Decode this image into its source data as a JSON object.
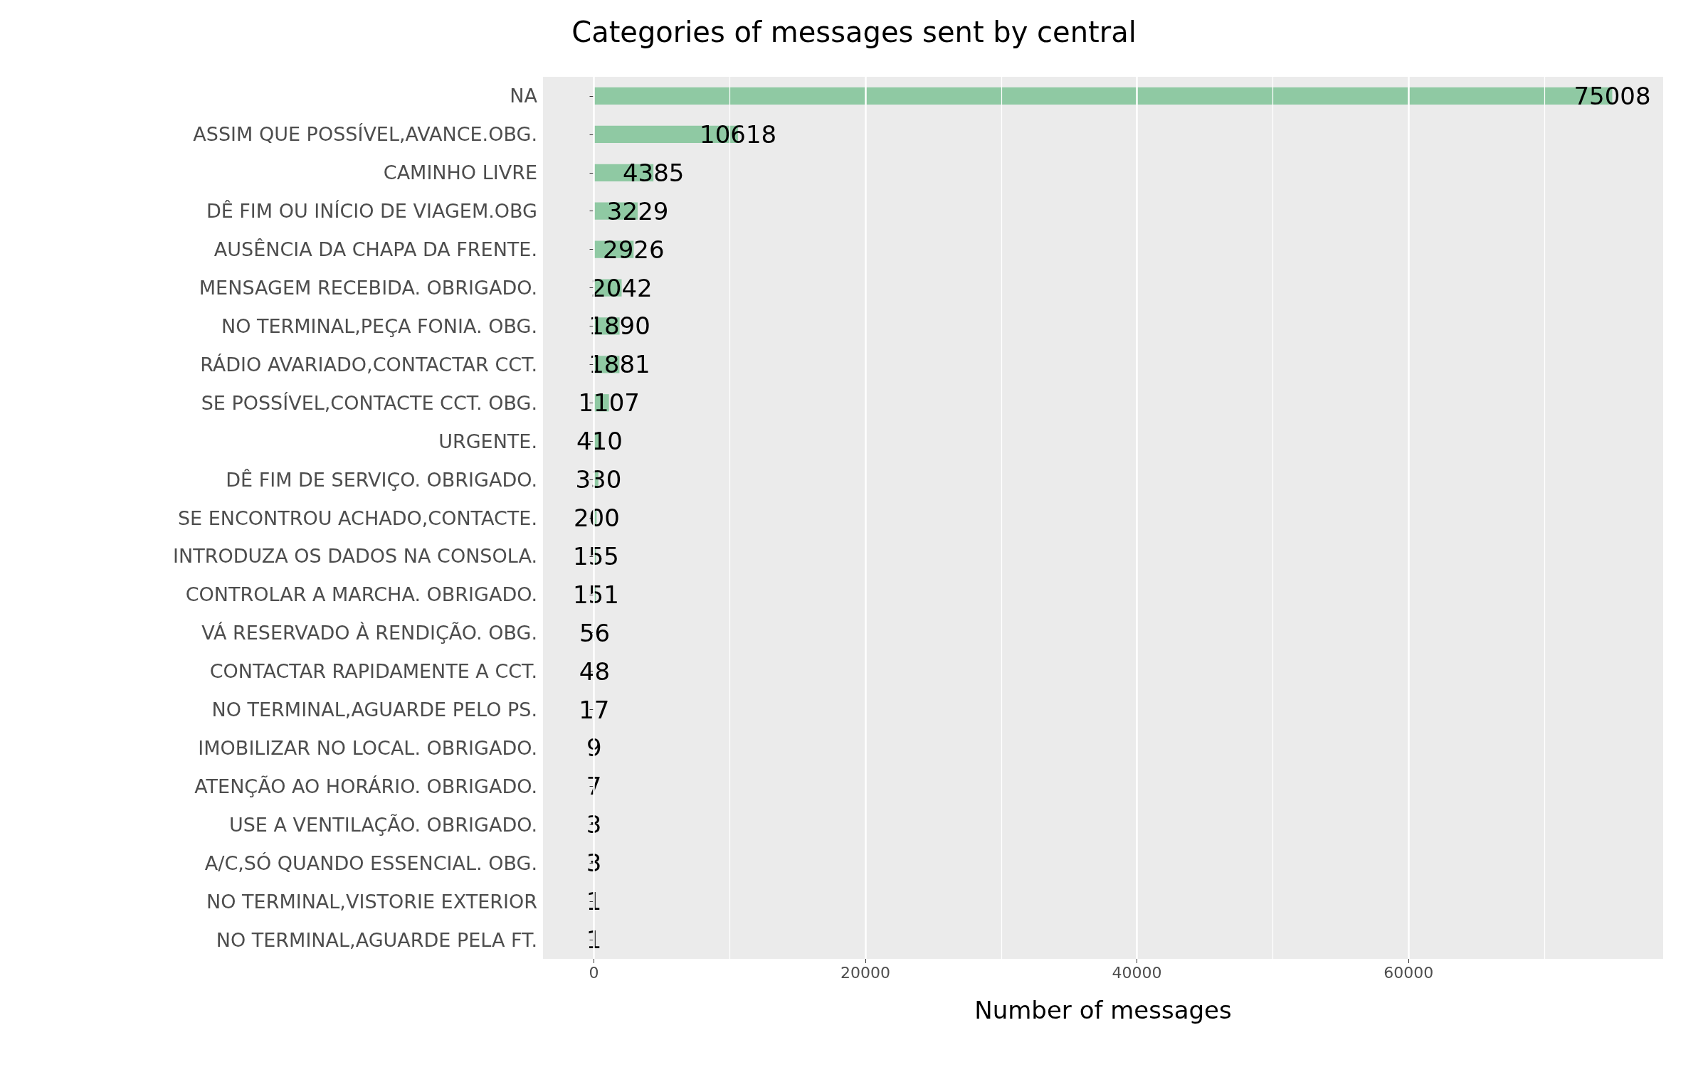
{
  "chart_data": {
    "type": "bar",
    "orientation": "horizontal",
    "title": "Categories of messages sent by central",
    "xlabel": "Number of messages",
    "categories": [
      "NA",
      "ASSIM QUE POSSÍVEL,AVANCE.OBG.",
      "CAMINHO LIVRE",
      "DÊ FIM OU INÍCIO DE VIAGEM.OBG",
      "AUSÊNCIA DA CHAPA DA FRENTE.",
      "MENSAGEM RECEBIDA. OBRIGADO.",
      "NO TERMINAL,PEÇA FONIA. OBG.",
      "RÁDIO AVARIADO,CONTACTAR CCT.",
      "SE POSSÍVEL,CONTACTE CCT. OBG.",
      "URGENTE.",
      "DÊ FIM DE SERVIÇO. OBRIGADO.",
      "SE ENCONTROU ACHADO,CONTACTE.",
      "INTRODUZA OS DADOS NA CONSOLA.",
      "CONTROLAR A MARCHA. OBRIGADO.",
      "VÁ RESERVADO À RENDIÇÃO. OBG.",
      "CONTACTAR RAPIDAMENTE A CCT.",
      "NO TERMINAL,AGUARDE PELO PS.",
      "IMOBILIZAR NO LOCAL. OBRIGADO.",
      "ATENÇÃO AO HORÁRIO. OBRIGADO.",
      "USE A VENTILAÇÃO. OBRIGADO.",
      "A/C,SÓ QUANDO ESSENCIAL. OBG.",
      "NO TERMINAL,VISTORIE EXTERIOR",
      "NO TERMINAL,AGUARDE PELA FT."
    ],
    "values": [
      75008,
      10618,
      4385,
      3229,
      2926,
      2042,
      1890,
      1881,
      1107,
      410,
      330,
      200,
      155,
      151,
      56,
      48,
      17,
      9,
      7,
      3,
      3,
      1,
      1
    ],
    "color": "#8fc9a3",
    "data_labels": true,
    "xlim": [
      -3750,
      78758
    ],
    "xticks": [
      0,
      20000,
      40000,
      60000
    ],
    "grid": "x"
  }
}
